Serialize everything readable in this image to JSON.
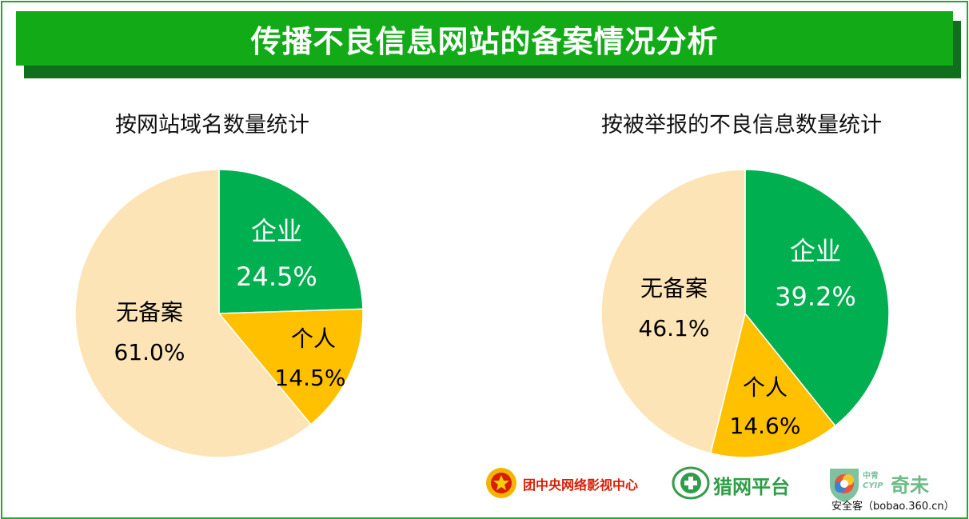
{
  "header": {
    "title": "传播不良信息网站的备案情况分析"
  },
  "chart_data": [
    {
      "type": "pie",
      "title": "按网站域名数量统计",
      "slices": [
        {
          "label": "企业",
          "value": 24.5,
          "display": "24.5%",
          "color": "#00b050",
          "label_color": "#ffffff"
        },
        {
          "label": "个人",
          "value": 14.5,
          "display": "14.5%",
          "color": "#ffc000",
          "label_color": "#000000"
        },
        {
          "label": "无备案",
          "value": 61.0,
          "display": "61.0%",
          "color": "#fce4b6",
          "label_color": "#000000"
        }
      ]
    },
    {
      "type": "pie",
      "title": "按被举报的不良信息数量统计",
      "slices": [
        {
          "label": "企业",
          "value": 39.2,
          "display": "39.2%",
          "color": "#00b050",
          "label_color": "#ffffff"
        },
        {
          "label": "个人",
          "value": 14.6,
          "display": "14.6%",
          "color": "#ffc000",
          "label_color": "#000000"
        },
        {
          "label": "无备案",
          "value": 46.1,
          "display": "46.1%",
          "color": "#fce4b6",
          "label_color": "#000000"
        }
      ]
    }
  ],
  "footer": {
    "logo1": "团中央网络影视中心",
    "logo2": "猎网平台",
    "logo3_top": "中青",
    "logo3_mid": "CYIP",
    "logo3_main": "奇未",
    "watermark": "安全客（bobao.360.cn）"
  }
}
